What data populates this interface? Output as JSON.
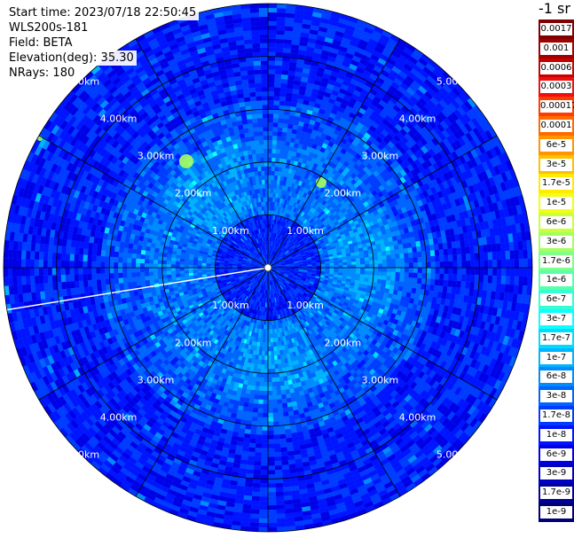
{
  "header": {
    "start_time": "Start time: 2023/07/18 22:50:45",
    "instrument": "WLS200s-181",
    "field": "Field: BETA",
    "elevation": "Elevation(deg): 35.30",
    "nrays": "NRays: 180"
  },
  "colorbar": {
    "units_label": "-1 sr",
    "ticks": [
      "0.0017",
      "0.001",
      "0.0006",
      "0.0003",
      "0.00017",
      "0.0001",
      "6e-5",
      "3e-5",
      "1.7e-5",
      "1e-5",
      "6e-6",
      "3e-6",
      "1.7e-6",
      "1e-6",
      "6e-7",
      "3e-7",
      "1.7e-7",
      "1e-7",
      "6e-8",
      "3e-8",
      "1.7e-8",
      "1e-8",
      "6e-9",
      "3e-9",
      "1.7e-9",
      "1e-9"
    ],
    "colors": [
      "#800000",
      "#a00000",
      "#c80000",
      "#ee1010",
      "#ff3c00",
      "#ff6a00",
      "#ff9600",
      "#ffc000",
      "#ffea00",
      "#f2ff14",
      "#ccff3a",
      "#a6ff60",
      "#80ff86",
      "#5affac",
      "#34ffd2",
      "#0effff",
      "#00dcff",
      "#00b4ff",
      "#008cff",
      "#0064ff",
      "#003cff",
      "#0014ff",
      "#0000e6",
      "#0000c0",
      "#00009a",
      "#000074"
    ]
  },
  "chart_data": {
    "type": "heatmap",
    "projection": "polar-ppi",
    "field": "BETA",
    "units": "sr-1",
    "nrays": 180,
    "range_rings_km": [
      1.0,
      2.0,
      3.0,
      4.0,
      5.0
    ],
    "max_range_km": 5.0,
    "spokes_deg": [
      0,
      30,
      60,
      90,
      120,
      150,
      180,
      210,
      240,
      270,
      300,
      330
    ],
    "ring_labels": [
      "1.00km",
      "2.00km",
      "3.00km",
      "4.00km",
      "5.00km"
    ],
    "color_scale": "log",
    "value_range": [
      1e-09,
      0.0017
    ]
  }
}
